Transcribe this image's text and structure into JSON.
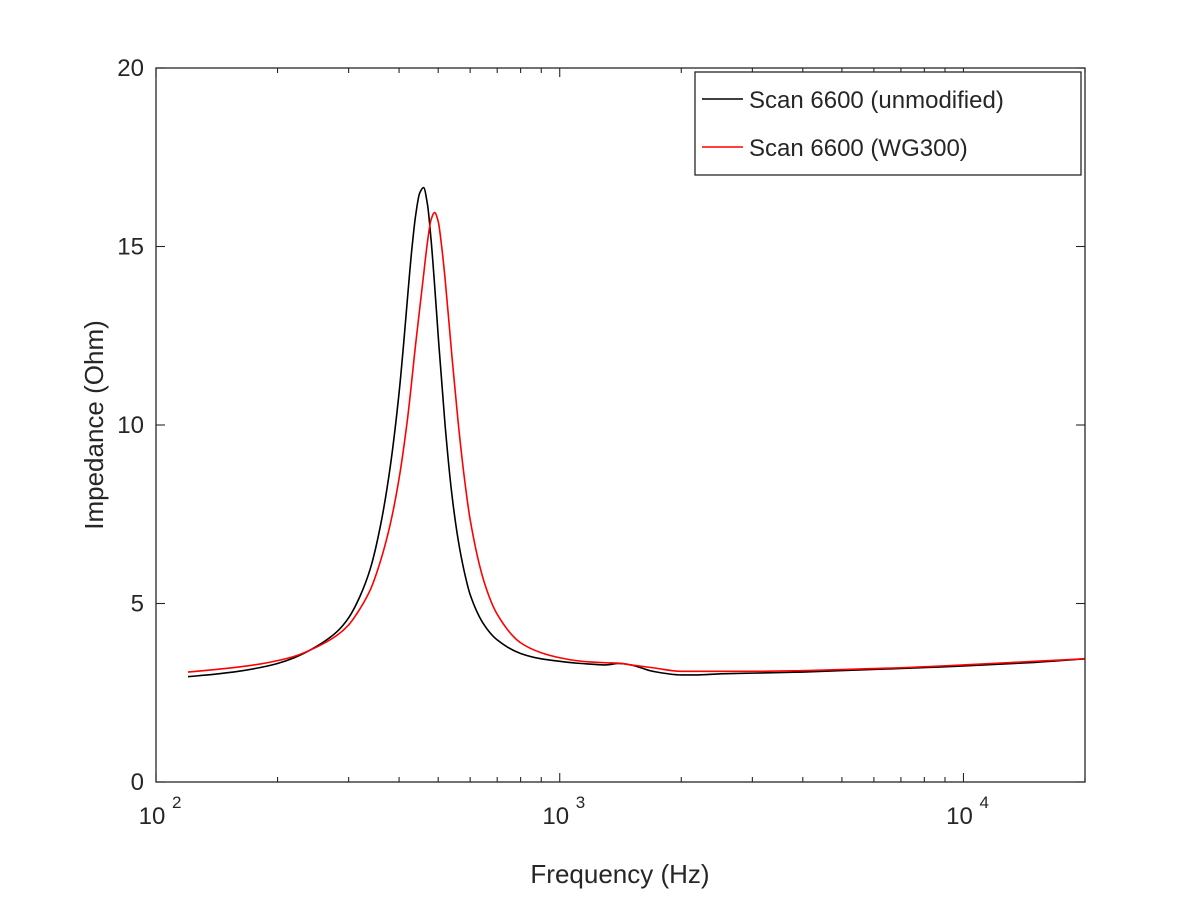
{
  "chart_data": {
    "type": "line",
    "title": "",
    "xlabel": "Frequency (Hz)",
    "ylabel": "Impedance (Ohm)",
    "x_scale": "log",
    "xlim": [
      100,
      20000
    ],
    "ylim": [
      0,
      20
    ],
    "grid": false,
    "legend_position": "top-right",
    "x_ticks": [
      {
        "value": 100,
        "base": "10",
        "exp": "2"
      },
      {
        "value": 1000,
        "base": "10",
        "exp": "3"
      },
      {
        "value": 10000,
        "base": "10",
        "exp": "4"
      }
    ],
    "y_ticks": [
      {
        "value": 0,
        "label": "0"
      },
      {
        "value": 5,
        "label": "5"
      },
      {
        "value": 10,
        "label": "10"
      },
      {
        "value": 15,
        "label": "15"
      },
      {
        "value": 20,
        "label": "20"
      }
    ],
    "series": [
      {
        "name": "Scan 6600 (unmodified)",
        "color": "#000000",
        "x": [
          120,
          140,
          160,
          180,
          200,
          220,
          250,
          280,
          300,
          320,
          340,
          360,
          380,
          400,
          410,
          420,
          430,
          440,
          450,
          460,
          470,
          480,
          490,
          500,
          520,
          540,
          560,
          580,
          600,
          650,
          700,
          800,
          900,
          1000,
          1100,
          1200,
          1300,
          1400,
          1500,
          1700,
          2000,
          2200,
          2500,
          3000,
          4000,
          5000,
          7000,
          10000,
          15000,
          20000
        ],
        "y": [
          2.95,
          3.02,
          3.1,
          3.2,
          3.32,
          3.48,
          3.8,
          4.2,
          4.6,
          5.2,
          6.0,
          7.2,
          8.8,
          10.9,
          12.2,
          13.6,
          14.9,
          15.9,
          16.5,
          16.65,
          16.2,
          15.2,
          13.9,
          12.5,
          10.0,
          8.1,
          6.8,
          5.9,
          5.25,
          4.4,
          3.98,
          3.6,
          3.45,
          3.38,
          3.33,
          3.3,
          3.28,
          3.32,
          3.28,
          3.1,
          3.0,
          3.0,
          3.03,
          3.05,
          3.08,
          3.12,
          3.18,
          3.25,
          3.35,
          3.45
        ]
      },
      {
        "name": "Scan 6600 (WG300)",
        "color": "#ff0000",
        "x": [
          120,
          140,
          160,
          180,
          200,
          220,
          250,
          280,
          300,
          320,
          340,
          360,
          380,
          400,
          420,
          440,
          460,
          470,
          480,
          490,
          500,
          510,
          520,
          540,
          560,
          580,
          600,
          650,
          700,
          800,
          900,
          1000,
          1100,
          1200,
          1300,
          1400,
          1500,
          1700,
          2000,
          2200,
          2500,
          3000,
          4000,
          5000,
          7000,
          10000,
          15000,
          20000
        ],
        "y": [
          3.08,
          3.15,
          3.22,
          3.3,
          3.4,
          3.52,
          3.78,
          4.1,
          4.4,
          4.85,
          5.4,
          6.2,
          7.2,
          8.5,
          10.2,
          12.3,
          14.2,
          15.1,
          15.75,
          15.95,
          15.7,
          15.0,
          14.1,
          12.0,
          10.1,
          8.55,
          7.35,
          5.6,
          4.7,
          3.9,
          3.62,
          3.48,
          3.4,
          3.36,
          3.34,
          3.33,
          3.28,
          3.2,
          3.1,
          3.1,
          3.1,
          3.1,
          3.12,
          3.15,
          3.2,
          3.28,
          3.38,
          3.45
        ]
      }
    ]
  }
}
